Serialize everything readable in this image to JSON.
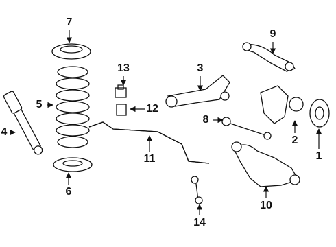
{
  "callouts": [
    {
      "label": "1"
    },
    {
      "label": "2"
    },
    {
      "label": "3"
    },
    {
      "label": "4"
    },
    {
      "label": "5"
    },
    {
      "label": "6"
    },
    {
      "label": "7"
    },
    {
      "label": "8"
    },
    {
      "label": "9"
    },
    {
      "label": "10"
    },
    {
      "label": "11"
    },
    {
      "label": "12"
    },
    {
      "label": "13"
    },
    {
      "label": "14"
    }
  ]
}
